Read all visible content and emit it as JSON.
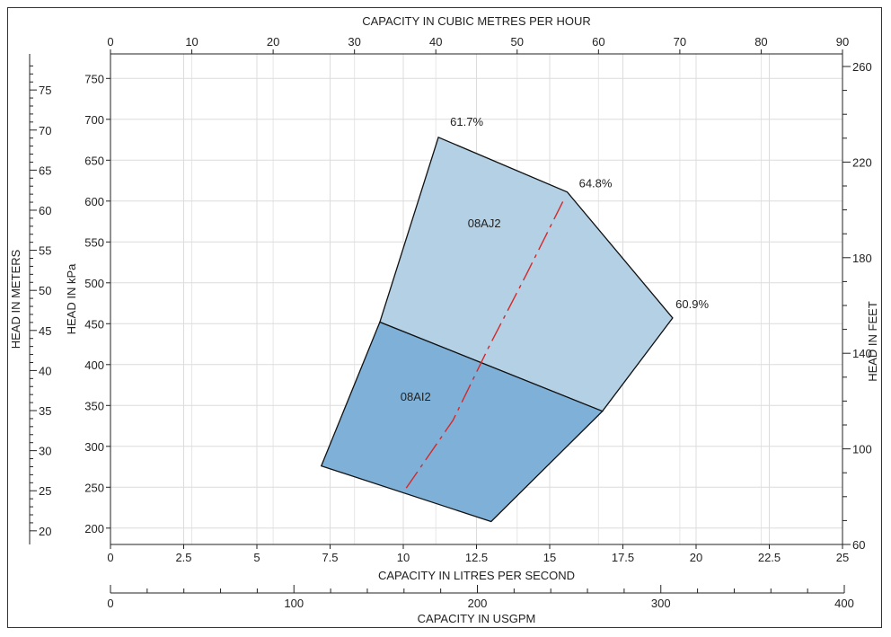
{
  "chart_data": {
    "type": "area",
    "title": "",
    "primary_x_axis": {
      "label": "CAPACITY IN LITRES PER SECOND",
      "range": [
        0,
        25
      ],
      "ticks": [
        "0",
        "2.5",
        "5",
        "7.5",
        "10",
        "12.5",
        "15",
        "17.5",
        "20",
        "22.5",
        "25"
      ]
    },
    "top_x_axis": {
      "label": "CAPACITY IN CUBIC METRES PER HOUR",
      "range": [
        0,
        90
      ],
      "ticks": [
        "0",
        "10",
        "20",
        "30",
        "40",
        "50",
        "60",
        "70",
        "80",
        "90"
      ]
    },
    "bottom_x_axis": {
      "label": "CAPACITY IN USGPM",
      "range": [
        0,
        400
      ],
      "ticks": [
        "0",
        "100",
        "200",
        "300",
        "400"
      ]
    },
    "primary_y_axis": {
      "label": "HEAD IN kPa",
      "range": [
        180,
        780
      ],
      "ticks": [
        "200",
        "250",
        "300",
        "350",
        "400",
        "450",
        "500",
        "550",
        "600",
        "650",
        "700",
        "750"
      ]
    },
    "meters_y_axis": {
      "label": "HEAD IN METERS",
      "range": [
        18.3,
        79.5
      ],
      "ticks": [
        "20",
        "25",
        "30",
        "35",
        "40",
        "45",
        "50",
        "55",
        "60",
        "65",
        "70",
        "75"
      ]
    },
    "feet_y_axis": {
      "label": "HEAD IN FEET",
      "range": [
        60,
        260
      ],
      "ticks": [
        "60",
        "100",
        "140",
        "180",
        "220",
        "260"
      ]
    },
    "grid": true,
    "regions": [
      {
        "name": "08AJ2",
        "color": "#b3d0e5",
        "points": [
          [
            11.2,
            678
          ],
          [
            15.6,
            611
          ],
          [
            19.2,
            457
          ],
          [
            16.8,
            343
          ],
          [
            9.2,
            452
          ]
        ]
      },
      {
        "name": "08AI2",
        "color": "#7fb1d8",
        "points": [
          [
            9.2,
            452
          ],
          [
            16.8,
            343
          ],
          [
            13.0,
            208
          ],
          [
            7.2,
            276
          ]
        ]
      }
    ],
    "efficiency_line": {
      "color": "#d62828",
      "dashed": true,
      "points": [
        [
          10.1,
          249
        ],
        [
          11.7,
          332
        ],
        [
          12.9,
          420
        ],
        [
          14.2,
          510
        ],
        [
          15.5,
          603
        ]
      ]
    },
    "annotations": [
      {
        "text": "61.7%",
        "x": 11.6,
        "y": 692
      },
      {
        "text": "64.8%",
        "x": 16.0,
        "y": 617
      },
      {
        "text": "60.9%",
        "x": 19.3,
        "y": 469
      }
    ]
  }
}
